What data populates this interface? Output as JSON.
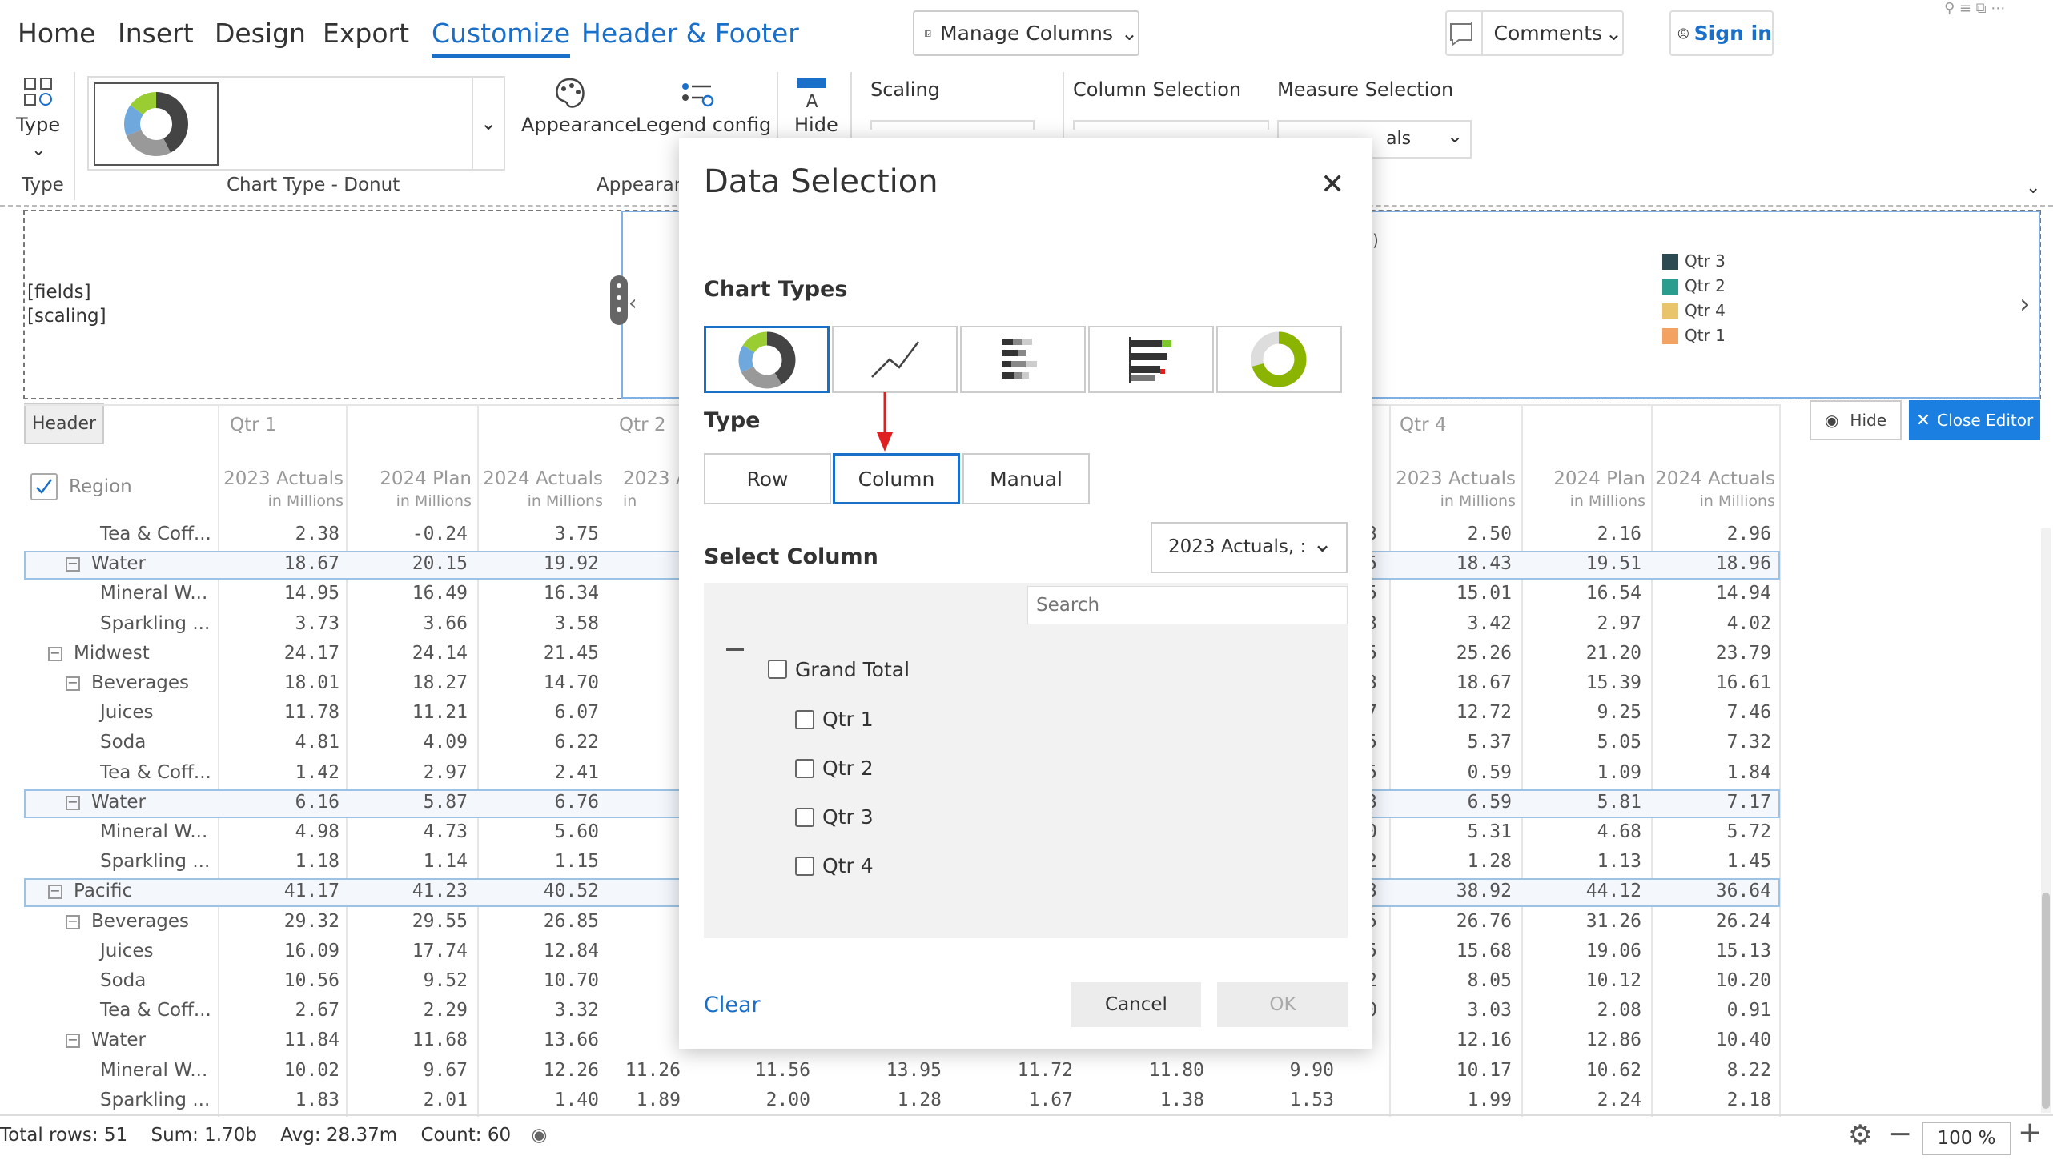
{
  "menu": {
    "tabs": [
      "Home",
      "Insert",
      "Design",
      "Export",
      "Customize",
      "Header & Footer"
    ],
    "manage_columns": "Manage Columns",
    "comments": "Comments",
    "sign_in": "Sign in"
  },
  "ribbon": {
    "type_label": "Type",
    "type_group": "Type",
    "chart_type_group": "Chart Type - Donut",
    "appearance": "Appearance",
    "legend_config": "Legend config",
    "hide": "Hide",
    "appearance_group": "Appearanc",
    "scaling": "Scaling",
    "column_selection": "Column Selection",
    "measure_selection": "Measure Selection",
    "measure_value": "als"
  },
  "header_editor": {
    "fields": "[fields]",
    "scaling": "[scaling]",
    "header_tab": "Header",
    "hide_btn": "Hide",
    "close_editor": "Close Editor",
    "partial_text": ")",
    "legend": [
      {
        "label": "Qtr 3",
        "color": "#2c4a52"
      },
      {
        "label": "Qtr 2",
        "color": "#2a9d8f"
      },
      {
        "label": "Qtr 4",
        "color": "#e9c46a"
      },
      {
        "label": "Qtr 1",
        "color": "#f4a261"
      }
    ]
  },
  "table": {
    "region_header": "Region",
    "quarters": [
      "Qtr 1",
      "Qtr 2",
      "Qtr 4"
    ],
    "left_cols": [
      {
        "title": "2023 Actuals",
        "sub": "in Millions"
      },
      {
        "title": "2024 Plan",
        "sub": "in Millions"
      },
      {
        "title": "2024 Actuals",
        "sub": "in Millions"
      }
    ],
    "partial_col": {
      "title": "2023 A",
      "sub": "in"
    },
    "right_cols": [
      {
        "title": "2023 Actuals",
        "sub": "in Millions"
      },
      {
        "title": "2024 Plan",
        "sub": "in Millions"
      },
      {
        "title": "2024 Actuals",
        "sub": "in Millions"
      }
    ],
    "rows": [
      {
        "label": "Tea & Coff...",
        "indent": 3,
        "left": [
          "2.38",
          "-0.24",
          "3.75"
        ],
        "right": [
          "2.50",
          "2.16",
          "2.96"
        ],
        "edge": "3"
      },
      {
        "label": "Water",
        "indent": 2,
        "hl": true,
        "left": [
          "18.67",
          "20.15",
          "19.92"
        ],
        "right": [
          "18.43",
          "19.51",
          "18.96"
        ],
        "edge": "5"
      },
      {
        "label": "Mineral W...",
        "indent": 3,
        "left": [
          "14.95",
          "16.49",
          "16.34"
        ],
        "right": [
          "15.01",
          "16.54",
          "14.94"
        ],
        "edge": "5"
      },
      {
        "label": "Sparkling ...",
        "indent": 3,
        "left": [
          "3.73",
          "3.66",
          "3.58"
        ],
        "right": [
          "3.42",
          "2.97",
          "4.02"
        ],
        "edge": "3"
      },
      {
        "label": "Midwest",
        "indent": 1,
        "left": [
          "24.17",
          "24.14",
          "21.45"
        ],
        "right": [
          "25.26",
          "21.20",
          "23.79"
        ],
        "edge": "5"
      },
      {
        "label": "Beverages",
        "indent": 2,
        "left": [
          "18.01",
          "18.27",
          "14.70"
        ],
        "right": [
          "18.67",
          "15.39",
          "16.61"
        ],
        "edge": "3"
      },
      {
        "label": "Juices",
        "indent": 3,
        "left": [
          "11.78",
          "11.21",
          "6.07"
        ],
        "right": [
          "12.72",
          "9.25",
          "7.46"
        ],
        "edge": "7"
      },
      {
        "label": "Soda",
        "indent": 3,
        "left": [
          "4.81",
          "4.09",
          "6.22"
        ],
        "right": [
          "5.37",
          "5.05",
          "7.32"
        ],
        "edge": "5"
      },
      {
        "label": "Tea & Coff...",
        "indent": 3,
        "left": [
          "1.42",
          "2.97",
          "2.41"
        ],
        "right": [
          "0.59",
          "1.09",
          "1.84"
        ],
        "edge": "5"
      },
      {
        "label": "Water",
        "indent": 2,
        "hl": true,
        "left": [
          "6.16",
          "5.87",
          "6.76"
        ],
        "right": [
          "6.59",
          "5.81",
          "7.17"
        ],
        "edge": "3"
      },
      {
        "label": "Mineral W...",
        "indent": 3,
        "left": [
          "4.98",
          "4.73",
          "5.60"
        ],
        "right": [
          "5.31",
          "4.68",
          "5.72"
        ],
        "edge": "0"
      },
      {
        "label": "Sparkling ...",
        "indent": 3,
        "left": [
          "1.18",
          "1.14",
          "1.15"
        ],
        "right": [
          "1.28",
          "1.13",
          "1.45"
        ],
        "edge": "2"
      },
      {
        "label": "Pacific",
        "indent": 1,
        "hl": true,
        "left": [
          "41.17",
          "41.23",
          "40.52"
        ],
        "right": [
          "38.92",
          "44.12",
          "36.64"
        ],
        "edge": "3"
      },
      {
        "label": "Beverages",
        "indent": 2,
        "left": [
          "29.32",
          "29.55",
          "26.85"
        ],
        "right": [
          "26.76",
          "31.26",
          "26.24"
        ],
        "edge": "5"
      },
      {
        "label": "Juices",
        "indent": 3,
        "left": [
          "16.09",
          "17.74",
          "12.84"
        ],
        "right": [
          "15.68",
          "19.06",
          "15.13"
        ],
        "edge": "5"
      },
      {
        "label": "Soda",
        "indent": 3,
        "left": [
          "10.56",
          "9.52",
          "10.70"
        ],
        "right": [
          "8.05",
          "10.12",
          "10.20"
        ],
        "edge": "2"
      },
      {
        "label": "Tea & Coff...",
        "indent": 3,
        "left": [
          "2.67",
          "2.29",
          "3.32"
        ],
        "right": [
          "3.03",
          "2.08",
          "0.91"
        ],
        "edge": "0"
      },
      {
        "label": "Water",
        "indent": 2,
        "left": [
          "11.84",
          "11.68",
          "13.66"
        ],
        "right": [
          "12.16",
          "12.86",
          "10.40"
        ],
        "edge": ""
      },
      {
        "label": "Mineral W...",
        "indent": 3,
        "left": [
          "10.02",
          "9.67",
          "12.26"
        ],
        "middle": [
          "11.26",
          "11.56",
          "13.95",
          "11.72",
          "11.80",
          "9.90"
        ],
        "right": [
          "10.17",
          "10.62",
          "8.22"
        ],
        "edge": ""
      },
      {
        "label": "Sparkling ...",
        "indent": 3,
        "left": [
          "1.83",
          "2.01",
          "1.40"
        ],
        "middle": [
          "1.89",
          "2.00",
          "1.28",
          "1.67",
          "1.38",
          "1.53"
        ],
        "right": [
          "1.99",
          "2.24",
          "2.18"
        ],
        "edge": ""
      }
    ]
  },
  "status": {
    "total_rows": "Total rows: 51",
    "sum": "Sum: 1.70b",
    "avg": "Avg: 28.37m",
    "count": "Count: 60",
    "zoom": "100 %"
  },
  "dialog": {
    "title": "Data Selection",
    "chart_types_heading": "Chart Types",
    "type_heading": "Type",
    "type_options": [
      "Row",
      "Column",
      "Manual"
    ],
    "selected_type": "Column",
    "select_column_heading": "Select Column",
    "column_dropdown": "2023 Actuals, :",
    "search_placeholder": "Search",
    "tree_root": "Grand Total",
    "tree_items": [
      "Qtr 1",
      "Qtr 2",
      "Qtr 3",
      "Qtr 4"
    ],
    "clear": "Clear",
    "cancel": "Cancel",
    "ok": "OK"
  },
  "colors": {
    "accent": "#1a6fc9",
    "close_editor_bg": "#1a7fe0",
    "arrow": "#e02020"
  }
}
